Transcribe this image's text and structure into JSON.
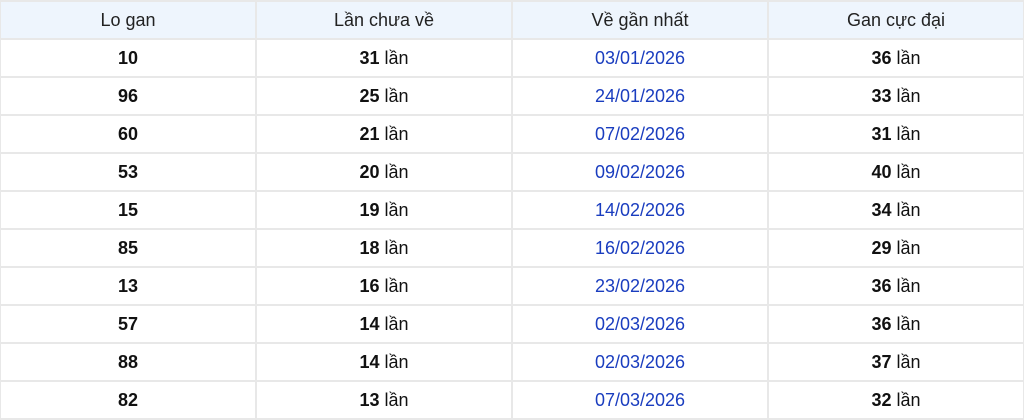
{
  "headers": [
    "Lo gan",
    "Lần chưa về",
    "Về gần nhất",
    "Gan cực đại"
  ],
  "unit": "lần",
  "colors": {
    "header_bg": "#eef5fd",
    "date": "#1a3dbf",
    "border": "#e8e8e8"
  },
  "rows": [
    {
      "lo": "10",
      "chua_ve": "31",
      "gan_nhat": "03/01/2026",
      "cuc_dai": "36"
    },
    {
      "lo": "96",
      "chua_ve": "25",
      "gan_nhat": "24/01/2026",
      "cuc_dai": "33"
    },
    {
      "lo": "60",
      "chua_ve": "21",
      "gan_nhat": "07/02/2026",
      "cuc_dai": "31"
    },
    {
      "lo": "53",
      "chua_ve": "20",
      "gan_nhat": "09/02/2026",
      "cuc_dai": "40"
    },
    {
      "lo": "15",
      "chua_ve": "19",
      "gan_nhat": "14/02/2026",
      "cuc_dai": "34"
    },
    {
      "lo": "85",
      "chua_ve": "18",
      "gan_nhat": "16/02/2026",
      "cuc_dai": "29"
    },
    {
      "lo": "13",
      "chua_ve": "16",
      "gan_nhat": "23/02/2026",
      "cuc_dai": "36"
    },
    {
      "lo": "57",
      "chua_ve": "14",
      "gan_nhat": "02/03/2026",
      "cuc_dai": "36"
    },
    {
      "lo": "88",
      "chua_ve": "14",
      "gan_nhat": "02/03/2026",
      "cuc_dai": "37"
    },
    {
      "lo": "82",
      "chua_ve": "13",
      "gan_nhat": "07/03/2026",
      "cuc_dai": "32"
    }
  ]
}
